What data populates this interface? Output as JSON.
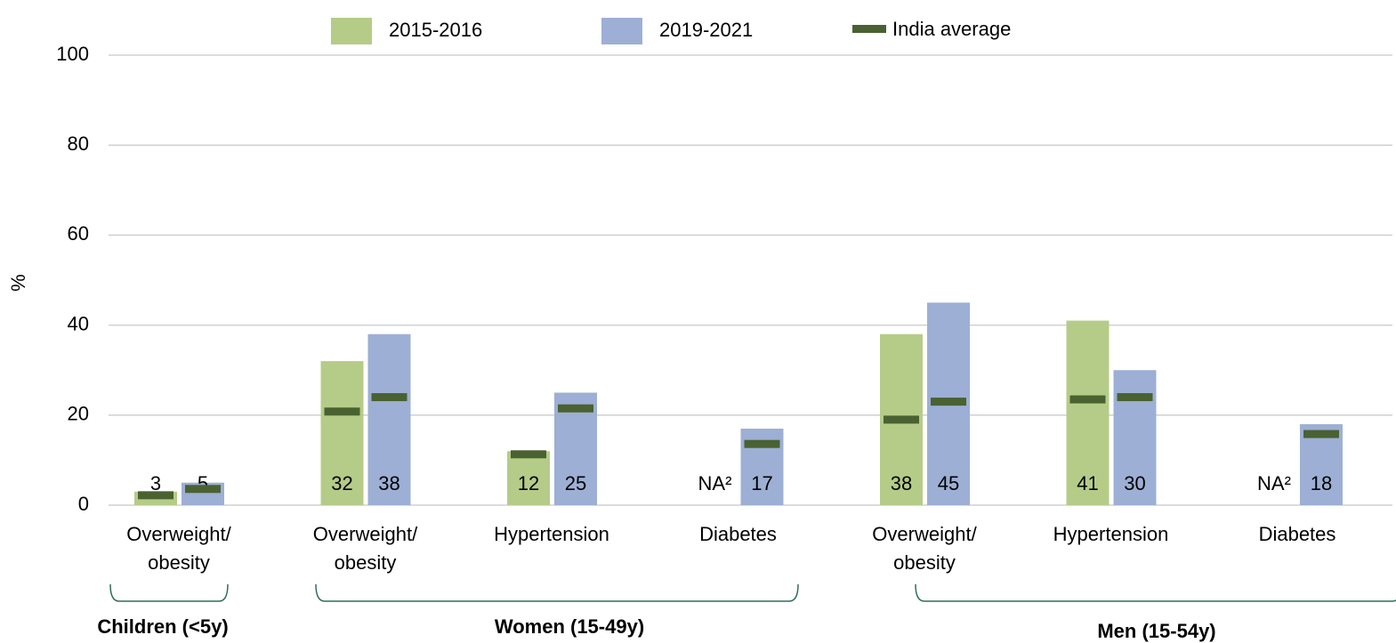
{
  "chart_data": {
    "type": "bar",
    "ylabel": "%",
    "ylim": [
      0,
      100
    ],
    "yticks": [
      0,
      20,
      40,
      60,
      80,
      100
    ],
    "grid": true,
    "groups": [
      {
        "label": "Children (<5y)",
        "categories": [
          "Overweight/\nobesity"
        ]
      },
      {
        "label": "Women (15-49y)",
        "categories": [
          "Overweight/\nobesity",
          "Hypertension",
          "Diabetes"
        ]
      },
      {
        "label": "Men (15-54y)",
        "categories": [
          "Overweight/\nobesity",
          "Hypertension",
          "Diabetes"
        ]
      }
    ],
    "series": [
      {
        "name": "2015-2016",
        "color": "#b5cc88",
        "values": [
          3,
          32,
          12,
          null,
          38,
          41,
          null
        ],
        "value_labels": [
          "3",
          "32",
          "12",
          "NA²",
          "38",
          "41",
          "NA²"
        ]
      },
      {
        "name": "2019-2021",
        "color": "#9dafd4",
        "values": [
          5,
          38,
          25,
          17,
          45,
          30,
          18
        ]
      }
    ],
    "average": {
      "name": "India average",
      "color": "#4a6131",
      "values": [
        [
          2.2,
          20.8,
          11.3,
          null,
          19,
          23.5,
          null
        ],
        [
          3.6,
          24,
          21.5,
          13.6,
          23,
          24,
          15.8
        ]
      ]
    }
  }
}
